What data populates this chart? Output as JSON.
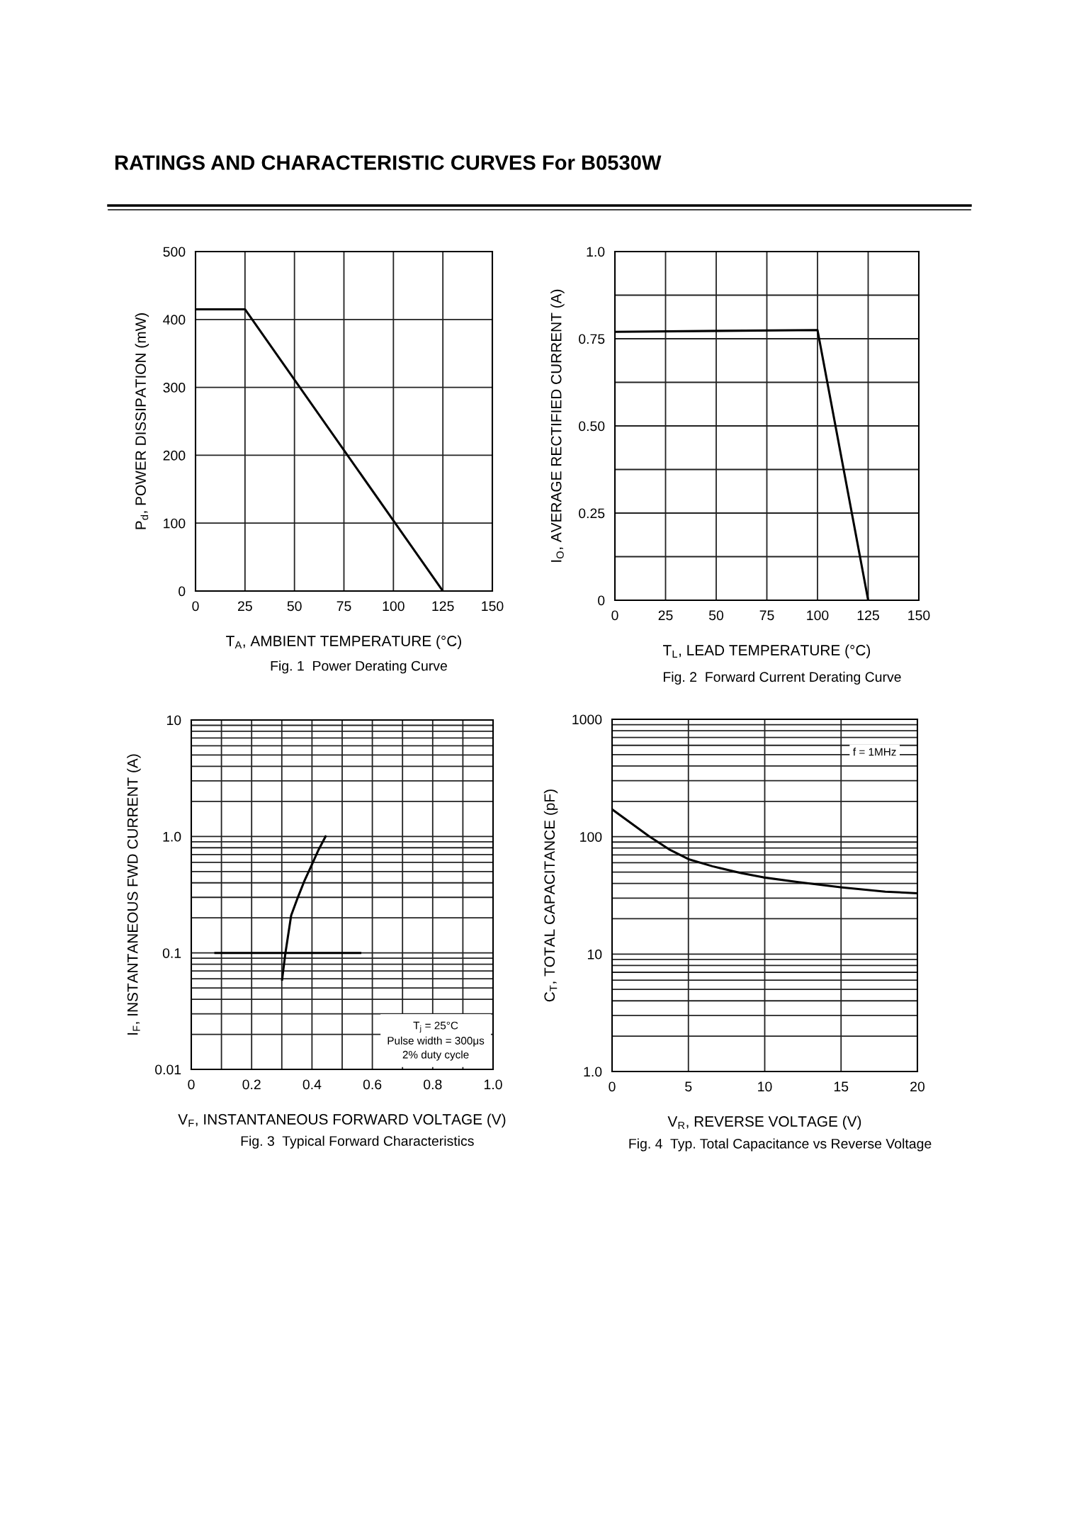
{
  "chart_data": [
    {
      "type": "line",
      "title": "Fig. 1  Power Derating Curve",
      "xlabel": "T$_{A}$, AMBIENT TEMPERATURE (°C)",
      "ylabel": "P$_{d}$, POWER DISSIPATION (mW)",
      "annotations": [
        "RATINGS AND CHARACTERISTIC CURVES For B0530W"
      ],
      "series": [
        {
          "color": "#000000",
          "x": [
            0,
            25,
            125
          ],
          "values": [
            415,
            415,
            0
          ]
        }
      ],
      "xlim": [
        0,
        150
      ],
      "xticks": [
        0,
        25,
        50,
        75,
        100,
        125,
        150
      ],
      "ylim": [
        0,
        500
      ],
      "yticks": [
        0,
        100,
        200,
        300,
        400,
        500
      ],
      "grid": true
    },
    {
      "type": "line",
      "title": "Fig. 2  Forward Current Derating Curve",
      "xlabel": "T$_{L}$, LEAD TEMPERATURE (°C)",
      "ylabel": "I$_{O}$, AVERAGE RECTIFIED CURRENT (A)",
      "series": [
        {
          "color": "#000000",
          "x": [
            0,
            100,
            125
          ],
          "values": [
            0.77,
            0.775,
            0
          ]
        }
      ],
      "xlim": [
        0,
        150
      ],
      "xticks": [
        0,
        25,
        50,
        75,
        100,
        125,
        150
      ],
      "ylim": [
        0,
        1.0
      ],
      "yticks": [
        0,
        {
          "value": 0.125,
          "label": null
        },
        {
          "value": 0.25,
          "label": "0.25"
        },
        {
          "value": 0.375,
          "label": null
        },
        {
          "value": 0.5,
          "label": "0.50"
        },
        {
          "value": 0.625,
          "label": null
        },
        {
          "value": 0.75,
          "label": "0.75"
        },
        {
          "value": 0.875,
          "label": null
        },
        {
          "value": 1.0,
          "label": "1.0"
        }
      ],
      "grid": true
    },
    {
      "type": "line",
      "title": "Fig. 3  Typical Forward Characteristics",
      "xlabel": "V$_{F}$, INSTANTANEOUS FORWARD VOLTAGE (V)",
      "ylabel": "I$_{F}$, INSTANTANEOUS FWD CURRENT (A)",
      "annotations": [
        "T$_{j}$ = 25°C",
        "Pulse width = 300μs",
        "2% duty cycle"
      ],
      "log": "y",
      "series": [
        {
          "color": "#000000",
          "x": [
            0.301,
            0.312,
            0.331,
            0.351,
            0.374,
            0.398,
            0.422,
            0.445
          ],
          "values": [
            0.059,
            0.1,
            0.21,
            0.29,
            0.41,
            0.56,
            0.77,
            1.0
          ]
        },
        {
          "color": "#000000",
          "x": [
            0.08,
            0.56
          ],
          "values": [
            0.1,
            0.1
          ]
        }
      ],
      "xlim": [
        0,
        1.0
      ],
      "xticks": [
        0,
        {
          "value": 0.1,
          "label": null
        },
        0.2,
        {
          "value": 0.3,
          "label": null
        },
        0.4,
        {
          "value": 0.5,
          "label": null
        },
        0.6,
        {
          "value": 0.7,
          "label": null
        },
        0.8,
        {
          "value": 0.9,
          "label": null
        },
        {
          "value": 1.0,
          "label": "1.0"
        }
      ],
      "ylim": [
        0.01,
        10
      ],
      "yticks": [
        0.01,
        {
          "value": 0.02,
          "label": null
        },
        {
          "value": 0.03,
          "label": null
        },
        {
          "value": 0.04,
          "label": null
        },
        {
          "value": 0.05,
          "label": null
        },
        {
          "value": 0.06,
          "label": null
        },
        {
          "value": 0.07,
          "label": null
        },
        {
          "value": 0.08,
          "label": null
        },
        {
          "value": 0.09,
          "label": null
        },
        0.1,
        {
          "value": 0.2,
          "label": null
        },
        {
          "value": 0.3,
          "label": null
        },
        {
          "value": 0.4,
          "label": null
        },
        {
          "value": 0.5,
          "label": null
        },
        {
          "value": 0.6,
          "label": null
        },
        {
          "value": 0.7,
          "label": null
        },
        {
          "value": 0.8,
          "label": null
        },
        {
          "value": 0.9,
          "label": null
        },
        {
          "value": 1,
          "label": "1.0"
        },
        {
          "value": 2,
          "label": null
        },
        {
          "value": 3,
          "label": null
        },
        {
          "value": 4,
          "label": null
        },
        {
          "value": 5,
          "label": null
        },
        {
          "value": 6,
          "label": null
        },
        {
          "value": 7,
          "label": null
        },
        {
          "value": 8,
          "label": null
        },
        {
          "value": 9,
          "label": null
        },
        10
      ],
      "grid": true
    },
    {
      "type": "line",
      "title": "Fig. 4  Typ. Total Capacitance vs Reverse Voltage",
      "xlabel": "V$_{R}$, REVERSE VOLTAGE (V)",
      "ylabel": "C$_{T}$, TOTAL CAPACITANCE (pF)",
      "annotations": [
        "f = 1MHz"
      ],
      "log": "y",
      "series": [
        {
          "color": "#000000",
          "x": [
            0,
            2.42,
            3.74,
            5.06,
            6.57,
            8.45,
            9.92,
            12.2,
            15.06,
            17.9,
            20
          ],
          "values": [
            171,
            101,
            78,
            64,
            56,
            49,
            45,
            41,
            37,
            34,
            33
          ]
        }
      ],
      "xlim": [
        0,
        20
      ],
      "xticks": [
        0,
        5,
        10,
        15,
        20
      ],
      "ylim": [
        1.0,
        1000
      ],
      "yticks": [
        {
          "value": 1,
          "label": "1.0"
        },
        {
          "value": 2,
          "label": null
        },
        {
          "value": 3,
          "label": null
        },
        {
          "value": 4,
          "label": null
        },
        {
          "value": 5,
          "label": null
        },
        {
          "value": 6,
          "label": null
        },
        {
          "value": 7,
          "label": null
        },
        {
          "value": 8,
          "label": null
        },
        {
          "value": 9,
          "label": null
        },
        10,
        {
          "value": 20,
          "label": null
        },
        {
          "value": 30,
          "label": null
        },
        {
          "value": 40,
          "label": null
        },
        {
          "value": 50,
          "label": null
        },
        {
          "value": 60,
          "label": null
        },
        {
          "value": 70,
          "label": null
        },
        {
          "value": 80,
          "label": null
        },
        {
          "value": 90,
          "label": null
        },
        100,
        {
          "value": 200,
          "label": null
        },
        {
          "value": 300,
          "label": null
        },
        {
          "value": 400,
          "label": null
        },
        {
          "value": 500,
          "label": null
        },
        {
          "value": 600,
          "label": null
        },
        {
          "value": 700,
          "label": null
        },
        {
          "value": 800,
          "label": null
        },
        {
          "value": 900,
          "label": null
        },
        1000
      ],
      "grid": true
    }
  ]
}
